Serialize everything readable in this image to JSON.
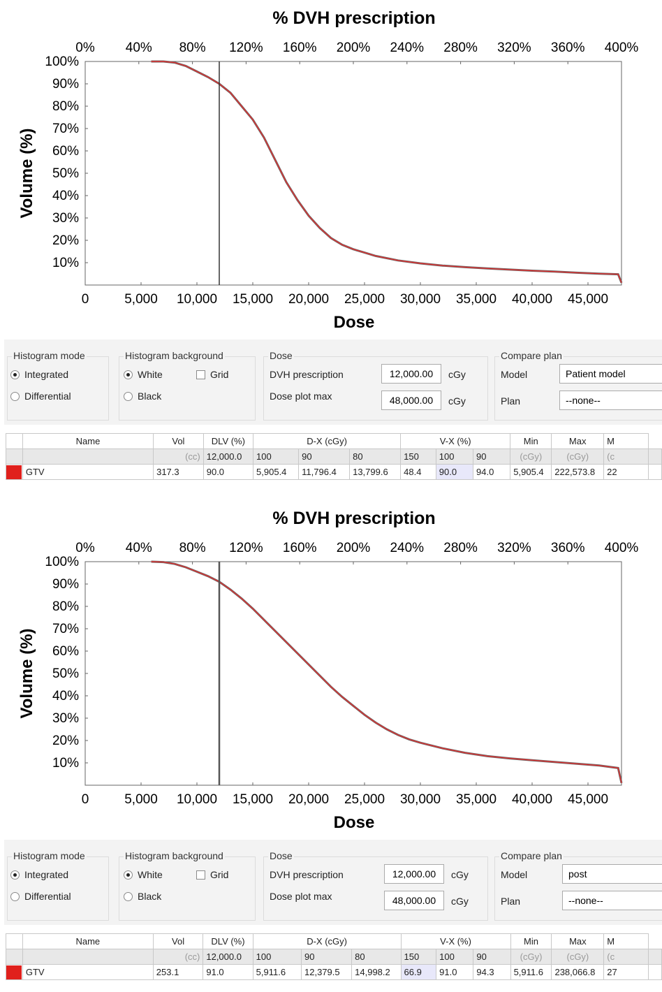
{
  "colors": {
    "curve": "#e03030",
    "curve_edge": "#555555",
    "prescription_line": "#333333",
    "swatch": "#e0201c"
  },
  "panels": [
    {
      "chart_data": {
        "type": "line",
        "title": "% DVH prescription",
        "xlabel": "Dose",
        "ylabel": "Volume (%)",
        "xlim": [
          0,
          48000
        ],
        "ylim": [
          0,
          100
        ],
        "x_ticks": [
          "0",
          "5,000",
          "10,000",
          "15,000",
          "20,000",
          "25,000",
          "30,000",
          "35,000",
          "40,000",
          "45,000"
        ],
        "top_ticks": [
          "0%",
          "40%",
          "80%",
          "120%",
          "160%",
          "200%",
          "240%",
          "280%",
          "320%",
          "360%",
          "400%"
        ],
        "y_ticks": [
          "100%",
          "90%",
          "80%",
          "70%",
          "60%",
          "50%",
          "40%",
          "30%",
          "20%",
          "10%"
        ],
        "prescription_dose": 12000,
        "grid": false,
        "series": [
          {
            "x": [
              5905,
              7000,
              8000,
              9000,
              10000,
              11000,
              12000,
              13000,
              14000,
              15000,
              16000,
              17000,
              18000,
              19000,
              20000,
              21000,
              22000,
              23000,
              24000,
              25000,
              26000,
              28000,
              30000,
              32000,
              34000,
              36000,
              38000,
              40000,
              42000,
              44000,
              46000,
              47700,
              48000
            ],
            "y": [
              100,
              100,
              99.5,
              98,
              95.5,
              93,
              90,
              86,
              80,
              74,
              66,
              56,
              46,
              38,
              31,
              25.5,
              21,
              18,
              16,
              14.5,
              13,
              11,
              9.7,
              8.7,
              8,
              7.4,
              6.9,
              6.4,
              6,
              5.5,
              5.1,
              4.8,
              1
            ]
          }
        ]
      },
      "controls": {
        "histogram_mode": {
          "title": "Histogram mode",
          "integrated": "Integrated",
          "differential": "Differential"
        },
        "histogram_background": {
          "title": "Histogram background",
          "white": "White",
          "black": "Black",
          "grid": "Grid"
        },
        "dose": {
          "title": "Dose",
          "prescription_label": "DVH prescription",
          "prescription_value": "12,000.00",
          "prescription_unit": "cGy",
          "plotmax_label": "Dose plot max",
          "plotmax_value": "48,000.00",
          "plotmax_unit": "cGy"
        },
        "compare_plan": {
          "title": "Compare plan",
          "model_label": "Model",
          "model_value": "Patient model",
          "plan_label": "Plan",
          "plan_value": "--none--"
        }
      },
      "table": {
        "headers": {
          "name": "Name",
          "vol": "Vol",
          "dlv": "DLV (%)",
          "dx": "D-X (cGy)",
          "vx": "V-X (%)",
          "min": "Min",
          "max": "Max",
          "m": "M"
        },
        "units": [
          "(cc)",
          "12,000.0",
          "100",
          "90",
          "80",
          "150",
          "100",
          "90",
          "(cGy)",
          "(cGy)",
          "(c"
        ],
        "row": [
          "GTV",
          "317.3",
          "90.0",
          "5,905.4",
          "11,796.4",
          "13,799.6",
          "48.4",
          "90.0",
          "94.0",
          "5,905.4",
          "222,573.8",
          "22"
        ]
      }
    },
    {
      "chart_data": {
        "type": "line",
        "title": "% DVH prescription",
        "xlabel": "Dose",
        "ylabel": "Volume (%)",
        "xlim": [
          0,
          48000
        ],
        "ylim": [
          0,
          100
        ],
        "x_ticks": [
          "0",
          "5,000",
          "10,000",
          "15,000",
          "20,000",
          "25,000",
          "30,000",
          "35,000",
          "40,000",
          "45,000"
        ],
        "top_ticks": [
          "0%",
          "40%",
          "80%",
          "120%",
          "160%",
          "200%",
          "240%",
          "280%",
          "320%",
          "360%",
          "400%"
        ],
        "y_ticks": [
          "100%",
          "90%",
          "80%",
          "70%",
          "60%",
          "50%",
          "40%",
          "30%",
          "20%",
          "10%"
        ],
        "prescription_dose": 12000,
        "grid": false,
        "series": [
          {
            "x": [
              5912,
              7000,
              8000,
              9000,
              10000,
              11000,
              12000,
              13000,
              14000,
              15000,
              16000,
              17000,
              18000,
              19000,
              20000,
              21000,
              22000,
              23000,
              24000,
              25000,
              26000,
              27000,
              28000,
              29000,
              30000,
              32000,
              34000,
              36000,
              38000,
              40000,
              42000,
              44000,
              46000,
              47700,
              48000
            ],
            "y": [
              100,
              99.8,
              99,
              97.5,
              95.5,
              93.5,
              91,
              87.5,
              83.5,
              79,
              74,
              69,
              64,
              59,
              54,
              49,
              44,
              39.5,
              35.5,
              31.5,
              28,
              25,
              22.5,
              20.5,
              19,
              16.5,
              14.5,
              13,
              12,
              11.2,
              10.4,
              9.6,
              8.8,
              7.7,
              1
            ]
          }
        ]
      },
      "controls": {
        "histogram_mode": {
          "title": "Histogram mode",
          "integrated": "Integrated",
          "differential": "Differential"
        },
        "histogram_background": {
          "title": "Histogram background",
          "white": "White",
          "black": "Black",
          "grid": "Grid"
        },
        "dose": {
          "title": "Dose",
          "prescription_label": "DVH prescription",
          "prescription_value": "12,000.00",
          "prescription_unit": "cGy",
          "plotmax_label": "Dose plot max",
          "plotmax_value": "48,000.00",
          "plotmax_unit": "cGy"
        },
        "compare_plan": {
          "title": "Compare plan",
          "model_label": "Model",
          "model_value": "post",
          "plan_label": "Plan",
          "plan_value": "--none--"
        }
      },
      "table": {
        "headers": {
          "name": "Name",
          "vol": "Vol",
          "dlv": "DLV (%)",
          "dx": "D-X (cGy)",
          "vx": "V-X (%)",
          "min": "Min",
          "max": "Max",
          "m": "M"
        },
        "units": [
          "(cc)",
          "12,000.0",
          "100",
          "90",
          "80",
          "150",
          "100",
          "90",
          "(cGy)",
          "(cGy)",
          "(c"
        ],
        "row": [
          "GTV",
          "253.1",
          "91.0",
          "5,911.6",
          "12,379.5",
          "14,998.2",
          "66.9",
          "91.0",
          "94.3",
          "5,911.6",
          "238,066.8",
          "27"
        ]
      }
    }
  ]
}
